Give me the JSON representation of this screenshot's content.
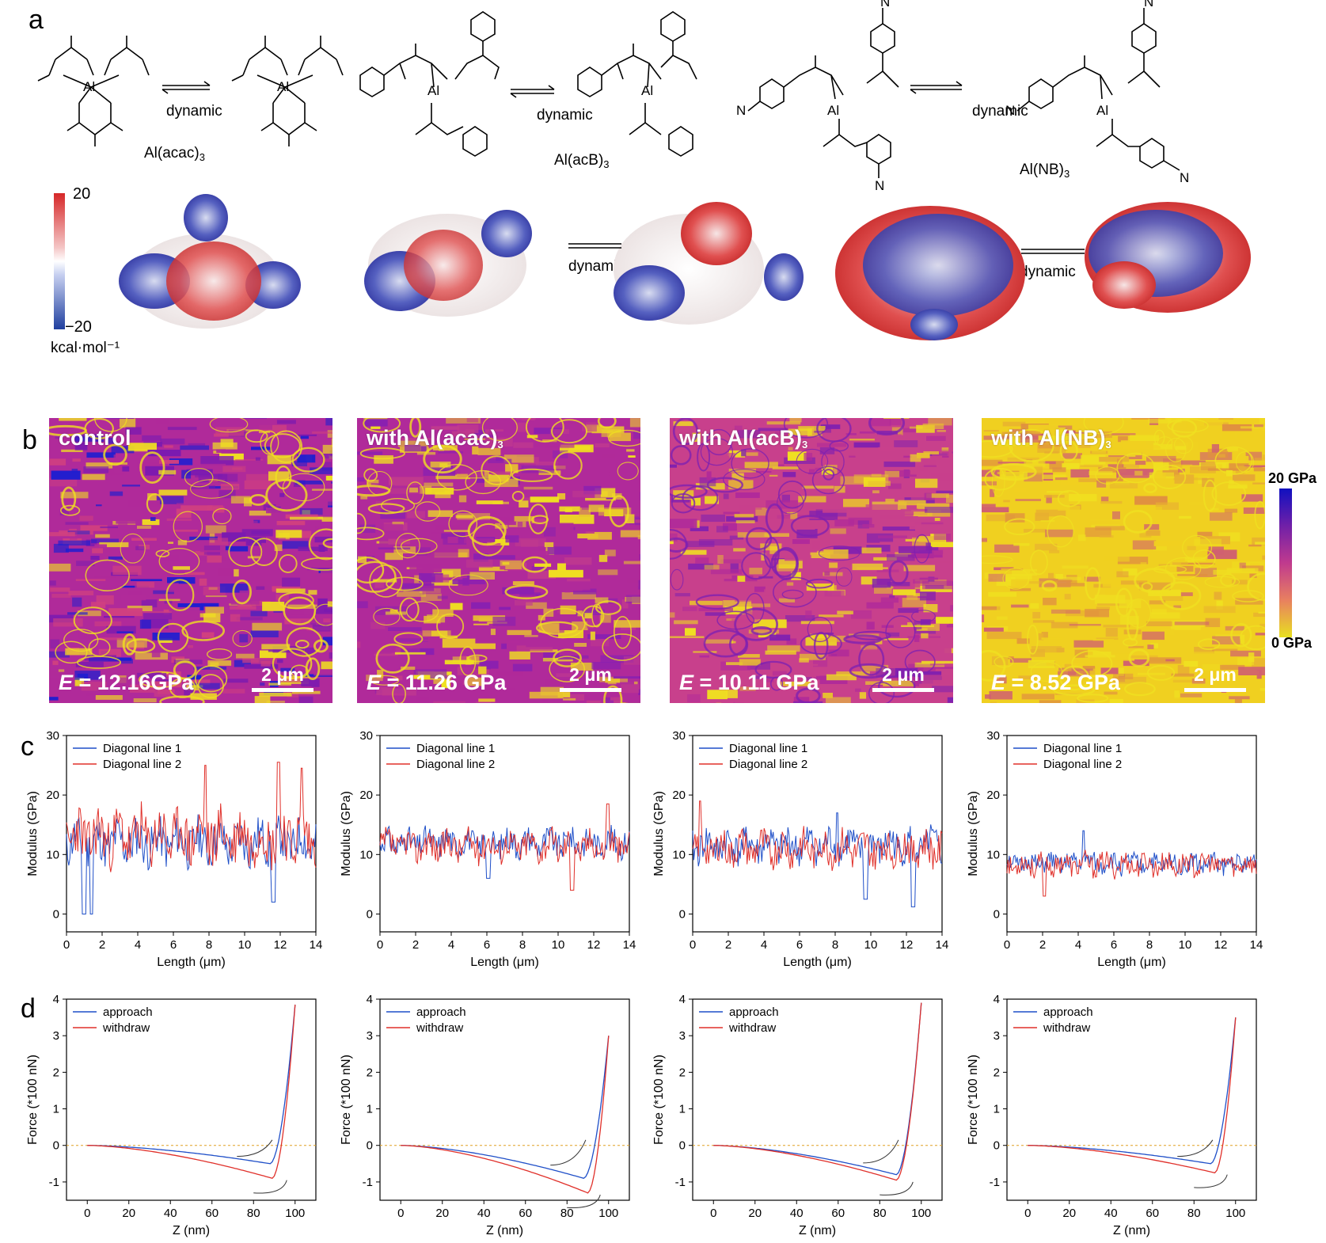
{
  "panel_a": {
    "letter": "a",
    "molecules": [
      {
        "name": "Al(acac)",
        "sub": "3"
      },
      {
        "name": "Al(acB)",
        "sub": "3"
      },
      {
        "name": "Al(NB)",
        "sub": "3"
      }
    ],
    "dynamic_label": "dynamic",
    "esp_colorbar": {
      "max": "20",
      "min": "−20",
      "unit": "kcal·mol⁻¹",
      "high_color": "#d62728",
      "low_color": "#1f3f9f"
    }
  },
  "panel_b": {
    "letter": "b",
    "images": [
      {
        "title": "control",
        "sub": "",
        "E_prefix": "E",
        "E_value": " = 12.16GPa",
        "scale": "2 μm",
        "palette": [
          "#b02a9a",
          "#7a1ab0",
          "#d04080",
          "#1e1ed0",
          "#f0e020"
        ]
      },
      {
        "title": "with Al(acac)",
        "sub": "3",
        "E_prefix": "E",
        "E_value": " = 11.26 GPa",
        "scale": "2 μm",
        "palette": [
          "#b02a9a",
          "#c03a8e",
          "#8a20b0",
          "#e8c030",
          "#f0e020"
        ]
      },
      {
        "title": "with Al(acB)",
        "sub": "3",
        "E_prefix": "E",
        "E_value": " = 10.11 GPa",
        "scale": "2 μm",
        "palette": [
          "#c8408c",
          "#b02a9a",
          "#f0e020",
          "#e8c030",
          "#8020b0"
        ]
      },
      {
        "title": "with Al(NB)",
        "sub": "3",
        "E_prefix": "E",
        "E_value": " = 8.52 GPa",
        "scale": "2 μm",
        "palette": [
          "#f0d020",
          "#e8b030",
          "#e09040",
          "#d06070",
          "#f0e020"
        ]
      }
    ],
    "colorbar": {
      "max": "20 GPa",
      "min": "0 GPa",
      "colors": [
        "#1010c0",
        "#7020a8",
        "#c03a8e",
        "#e88060",
        "#e8e020"
      ]
    }
  },
  "chart_data": [
    {
      "panel": "c",
      "type": "line",
      "xlabel": "Length (μm)",
      "ylabel": "Modulus (GPa)",
      "xlim": [
        0,
        14
      ],
      "ylim": [
        -3,
        30
      ],
      "xticks": [
        0,
        2,
        4,
        6,
        8,
        10,
        12,
        14
      ],
      "yticks": [
        0,
        10,
        20,
        30
      ],
      "series": [
        {
          "name": "Diagonal line 1",
          "color": "#1f4fc8",
          "mean": 12,
          "amp": 3.5,
          "seed": 11,
          "dips": [
            [
              1.0,
              0
            ],
            [
              1.4,
              0
            ],
            [
              11.6,
              2
            ]
          ]
        },
        {
          "name": "Diagonal line 2",
          "color": "#e0302a",
          "mean": 13,
          "amp": 4.5,
          "seed": 23,
          "peaks": [
            [
              7.8,
              25
            ],
            [
              11.9,
              25.5
            ],
            [
              13.2,
              24.5
            ]
          ]
        }
      ]
    },
    {
      "panel": "c",
      "type": "line",
      "xlabel": "Length (μm)",
      "ylabel": "Modulus (GPa)",
      "xlim": [
        0,
        14
      ],
      "ylim": [
        -3,
        30
      ],
      "xticks": [
        0,
        2,
        4,
        6,
        8,
        10,
        12,
        14
      ],
      "yticks": [
        0,
        10,
        20,
        30
      ],
      "series": [
        {
          "name": "Diagonal line 1",
          "color": "#1f4fc8",
          "mean": 12,
          "amp": 2.2,
          "seed": 31,
          "dips": [
            [
              6.1,
              6
            ]
          ]
        },
        {
          "name": "Diagonal line 2",
          "color": "#e0302a",
          "mean": 11.5,
          "amp": 2.5,
          "seed": 37,
          "dips": [
            [
              10.8,
              4
            ]
          ],
          "peaks": [
            [
              12.8,
              18.5
            ]
          ]
        }
      ]
    },
    {
      "panel": "c",
      "type": "line",
      "xlabel": "Length (μm)",
      "ylabel": "Modulus (GPa)",
      "xlim": [
        0,
        14
      ],
      "ylim": [
        -3,
        30
      ],
      "xticks": [
        0,
        2,
        4,
        6,
        8,
        10,
        12,
        14
      ],
      "yticks": [
        0,
        10,
        20,
        30
      ],
      "series": [
        {
          "name": "Diagonal line 1",
          "color": "#1f4fc8",
          "mean": 11.5,
          "amp": 2.8,
          "seed": 41,
          "dips": [
            [
              9.7,
              2.5
            ],
            [
              12.4,
              1.2
            ]
          ],
          "peaks": [
            [
              8.1,
              17
            ]
          ]
        },
        {
          "name": "Diagonal line 2",
          "color": "#e0302a",
          "mean": 11,
          "amp": 2.8,
          "seed": 43,
          "peaks": [
            [
              0.4,
              19
            ]
          ]
        }
      ]
    },
    {
      "panel": "c",
      "type": "line",
      "xlabel": "Length (μm)",
      "ylabel": "Modulus (GPa)",
      "xlim": [
        0,
        14
      ],
      "ylim": [
        -3,
        30
      ],
      "xticks": [
        0,
        2,
        4,
        6,
        8,
        10,
        12,
        14
      ],
      "yticks": [
        0,
        10,
        20,
        30
      ],
      "series": [
        {
          "name": "Diagonal line 1",
          "color": "#1f4fc8",
          "mean": 8.5,
          "amp": 1.6,
          "seed": 51,
          "peaks": [
            [
              4.3,
              14
            ]
          ]
        },
        {
          "name": "Diagonal line 2",
          "color": "#e0302a",
          "mean": 8.3,
          "amp": 1.8,
          "seed": 53,
          "dips": [
            [
              2.1,
              3
            ]
          ]
        }
      ]
    },
    {
      "panel": "d",
      "type": "line",
      "xlabel": "Z (nm)",
      "ylabel": "Force (*100 nN)",
      "xlim": [
        -10,
        110
      ],
      "ylim": [
        -1.5,
        4
      ],
      "xticks": [
        0,
        20,
        40,
        60,
        80,
        100
      ],
      "yticks": [
        -1,
        0,
        1,
        2,
        3,
        4
      ],
      "series": [
        {
          "name": "approach",
          "color": "#1f4fc8",
          "min_z": 88,
          "min_f": -0.5,
          "end_z": 100,
          "end_f": 3.85
        },
        {
          "name": "withdraw",
          "color": "#e0302a",
          "min_z": 89,
          "min_f": -0.9,
          "end_z": 100,
          "end_f": 3.85
        }
      ]
    },
    {
      "panel": "d",
      "type": "line",
      "xlabel": "Z (nm)",
      "ylabel": "Force (*100 nN)",
      "xlim": [
        -10,
        110
      ],
      "ylim": [
        -1.5,
        4
      ],
      "xticks": [
        0,
        20,
        40,
        60,
        80,
        100
      ],
      "yticks": [
        -1,
        0,
        1,
        2,
        3,
        4
      ],
      "series": [
        {
          "name": "approach",
          "color": "#1f4fc8",
          "min_z": 88,
          "min_f": -0.9,
          "end_z": 100,
          "end_f": 3.0
        },
        {
          "name": "withdraw",
          "color": "#e0302a",
          "min_z": 90,
          "min_f": -1.3,
          "end_z": 100,
          "end_f": 3.0
        }
      ]
    },
    {
      "panel": "d",
      "type": "line",
      "xlabel": "Z (nm)",
      "ylabel": "Force (*100 nN)",
      "xlim": [
        -10,
        110
      ],
      "ylim": [
        -1.5,
        4
      ],
      "xticks": [
        0,
        20,
        40,
        60,
        80,
        100
      ],
      "yticks": [
        -1,
        0,
        1,
        2,
        3,
        4
      ],
      "series": [
        {
          "name": "approach",
          "color": "#1f4fc8",
          "min_z": 88,
          "min_f": -0.8,
          "end_z": 100,
          "end_f": 3.9
        },
        {
          "name": "withdraw",
          "color": "#e0302a",
          "min_z": 88,
          "min_f": -0.95,
          "end_z": 100,
          "end_f": 3.9
        }
      ]
    },
    {
      "panel": "d",
      "type": "line",
      "xlabel": "Z (nm)",
      "ylabel": "Force (*100 nN)",
      "xlim": [
        -10,
        110
      ],
      "ylim": [
        -1.5,
        4
      ],
      "xticks": [
        0,
        20,
        40,
        60,
        80,
        100
      ],
      "yticks": [
        -1,
        0,
        1,
        2,
        3,
        4
      ],
      "series": [
        {
          "name": "approach",
          "color": "#1f4fc8",
          "min_z": 88,
          "min_f": -0.5,
          "end_z": 100,
          "end_f": 3.5
        },
        {
          "name": "withdraw",
          "color": "#e0302a",
          "min_z": 90,
          "min_f": -0.75,
          "end_z": 100,
          "end_f": 3.5
        }
      ]
    }
  ],
  "panel_c_letter": "c",
  "panel_d_letter": "d"
}
